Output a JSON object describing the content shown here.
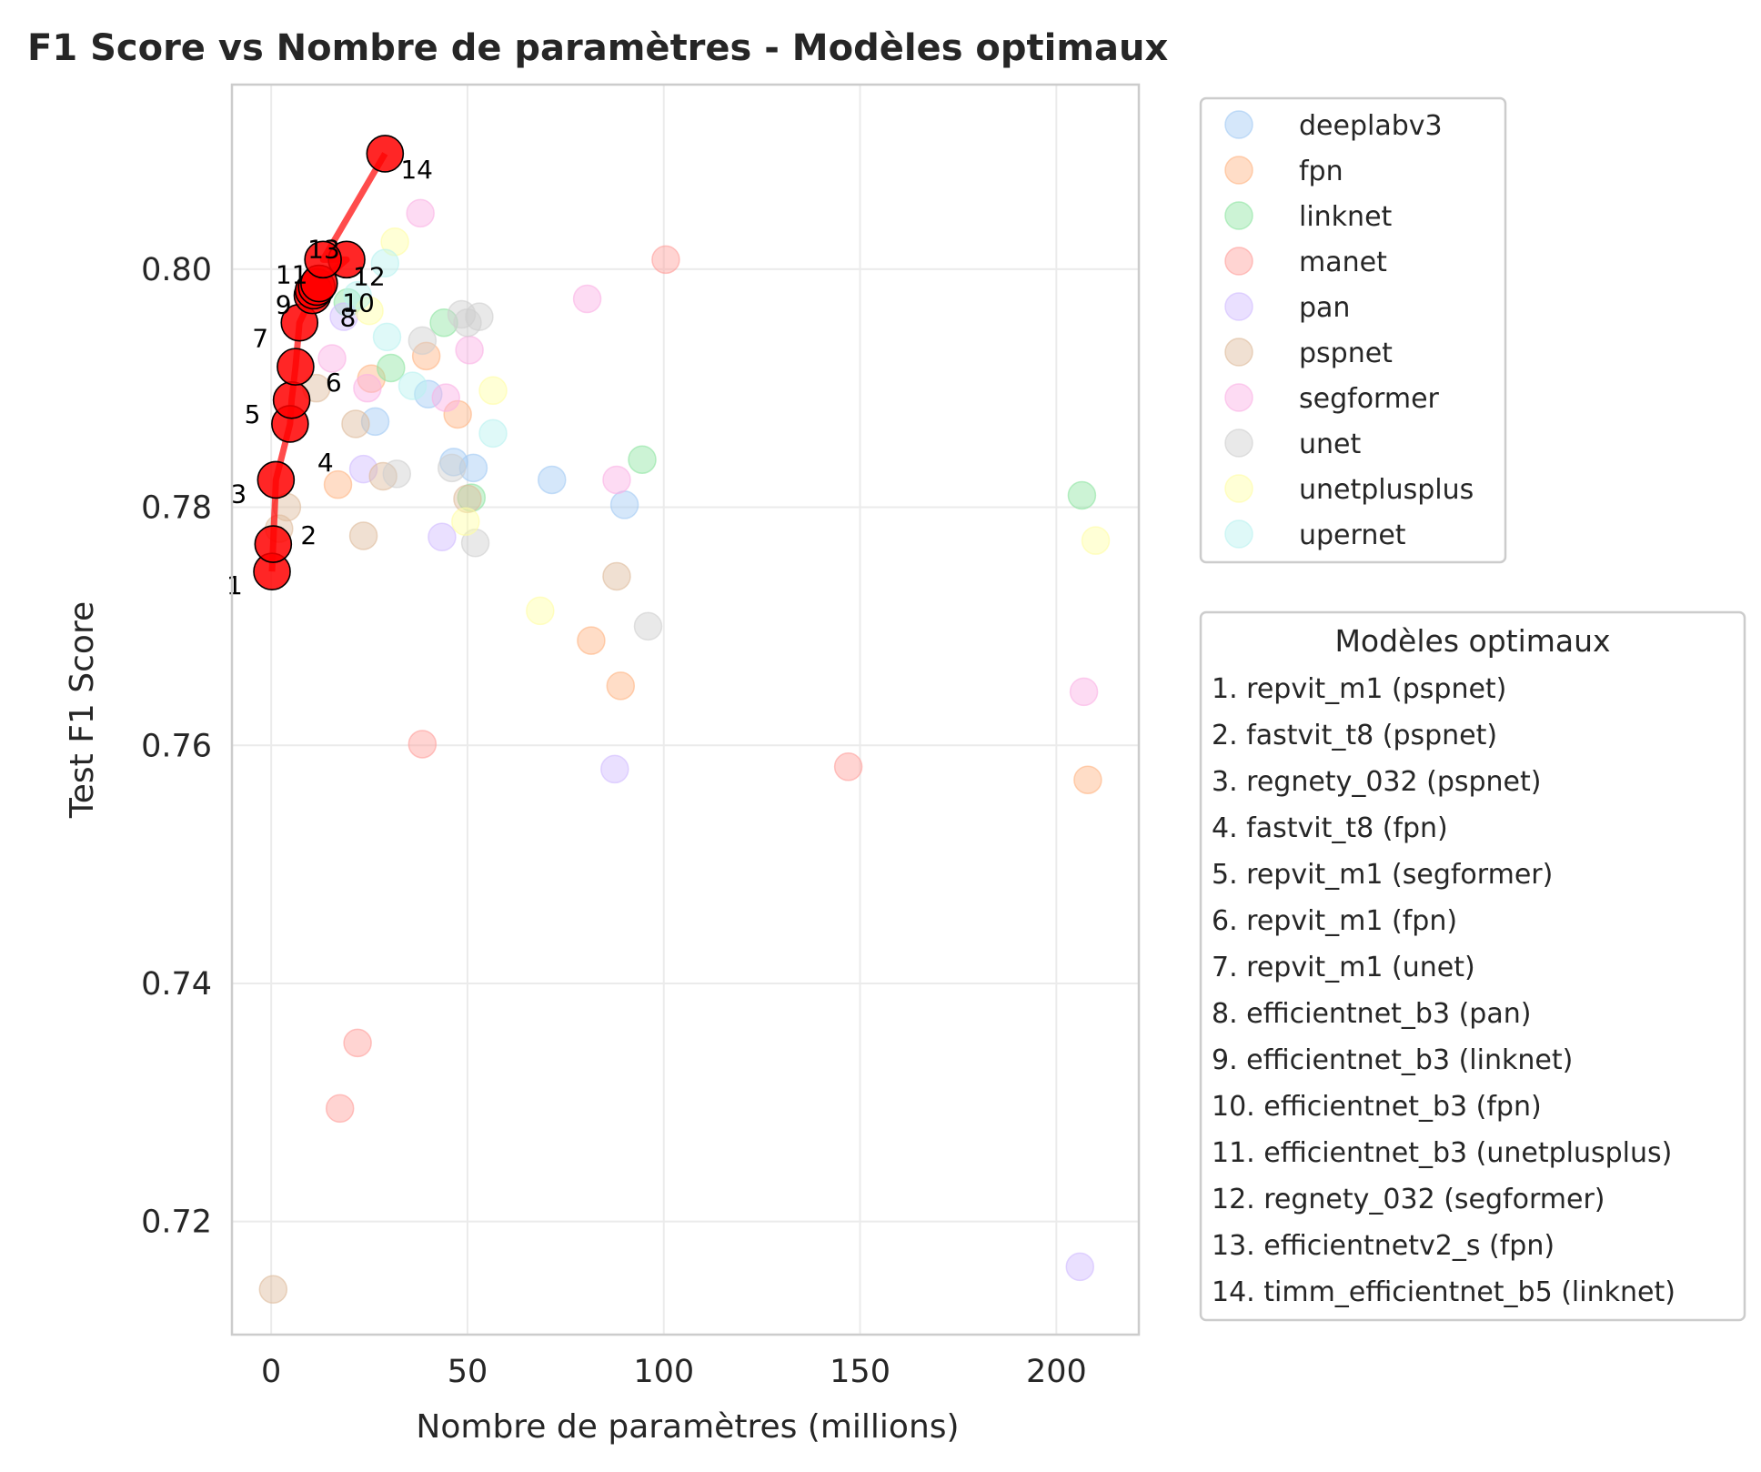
{
  "chart_data": {
    "type": "scatter",
    "title": "F1 Score vs Nombre de paramètres - Modèles optimaux",
    "xlabel": "Nombre de paramètres (millions)",
    "ylabel": "Test F1 Score",
    "xlim": [
      -10,
      221
    ],
    "ylim": [
      0.7105,
      0.8155
    ],
    "xticks": [
      0,
      50,
      100,
      150,
      200
    ],
    "yticks": [
      0.72,
      0.74,
      0.76,
      0.78,
      0.8
    ],
    "xtick_labels": [
      "0",
      "50",
      "100",
      "150",
      "200"
    ],
    "ytick_labels": [
      "0.72",
      "0.74",
      "0.76",
      "0.78",
      "0.80"
    ],
    "grid": true,
    "legend_placement": "outside-right-top",
    "series": [
      {
        "name": "deeplabv3",
        "color": "#a1c9f4",
        "points": [
          [
            26.5,
            0.7872
          ],
          [
            40,
            0.7895
          ],
          [
            46.5,
            0.7838
          ],
          [
            51.5,
            0.7833
          ],
          [
            71.5,
            0.7823
          ],
          [
            90,
            0.7802
          ]
        ]
      },
      {
        "name": "fpn",
        "color": "#ffb482",
        "points": [
          [
            17,
            0.7819
          ],
          [
            25.5,
            0.7908
          ],
          [
            39.5,
            0.7927
          ],
          [
            47.5,
            0.7878
          ],
          [
            81.5,
            0.7688
          ],
          [
            89,
            0.765
          ],
          [
            208,
            0.7571
          ]
        ]
      },
      {
        "name": "linknet",
        "color": "#8de5a1",
        "points": [
          [
            44,
            0.7955
          ],
          [
            30.5,
            0.7917
          ],
          [
            94.5,
            0.784
          ],
          [
            51,
            0.7808
          ],
          [
            206.5,
            0.781
          ],
          [
            19.5,
            0.7972
          ]
        ]
      },
      {
        "name": "manet",
        "color": "#ff9f9b",
        "points": [
          [
            100.5,
            0.8008
          ],
          [
            38.5,
            0.7601
          ],
          [
            147,
            0.7582
          ],
          [
            22,
            0.735
          ],
          [
            17.5,
            0.7295
          ]
        ]
      },
      {
        "name": "pan",
        "color": "#d0bbff",
        "points": [
          [
            23.5,
            0.7832
          ],
          [
            43.5,
            0.7775
          ],
          [
            87.5,
            0.758
          ],
          [
            206,
            0.7162
          ],
          [
            18.5,
            0.796
          ]
        ]
      },
      {
        "name": "pspnet",
        "color": "#debb9b",
        "points": [
          [
            11.5,
            0.79
          ],
          [
            21.5,
            0.787
          ],
          [
            23.5,
            0.7776
          ],
          [
            28.5,
            0.7826
          ],
          [
            4,
            0.78
          ],
          [
            2,
            0.7782
          ],
          [
            88,
            0.7742
          ],
          [
            0.5,
            0.7143
          ],
          [
            50,
            0.7807
          ]
        ]
      },
      {
        "name": "segformer",
        "color": "#fab0e4",
        "points": [
          [
            38,
            0.8047
          ],
          [
            80.5,
            0.7975
          ],
          [
            50.5,
            0.7932
          ],
          [
            15.5,
            0.7925
          ],
          [
            24.5,
            0.79
          ],
          [
            44.5,
            0.7892
          ],
          [
            88,
            0.7823
          ],
          [
            207,
            0.7645
          ]
        ]
      },
      {
        "name": "unet",
        "color": "#cfcfcf",
        "points": [
          [
            48.5,
            0.7962
          ],
          [
            53,
            0.796
          ],
          [
            50,
            0.7955
          ],
          [
            32,
            0.7828
          ],
          [
            46,
            0.7833
          ],
          [
            52,
            0.777
          ],
          [
            96,
            0.77
          ],
          [
            38.5,
            0.794
          ]
        ]
      },
      {
        "name": "unetplusplus",
        "color": "#fffea3",
        "points": [
          [
            31.5,
            0.8023
          ],
          [
            56.5,
            0.7898
          ],
          [
            49.5,
            0.7788
          ],
          [
            68.5,
            0.7713
          ],
          [
            210,
            0.7772
          ],
          [
            25,
            0.7965
          ]
        ]
      },
      {
        "name": "upernet",
        "color": "#b9f2f0",
        "points": [
          [
            29.5,
            0.7943
          ],
          [
            36,
            0.7902
          ],
          [
            56.5,
            0.7862
          ],
          [
            22,
            0.7978
          ],
          [
            29,
            0.8005
          ]
        ]
      }
    ],
    "optimal": {
      "legend_title": "Modèles optimaux",
      "color": "#ff0000",
      "points": [
        {
          "num": "1",
          "x": 0.2,
          "y": 0.7746,
          "label": "1. repvit_m1 (pspnet)"
        },
        {
          "num": "2",
          "x": 0.5,
          "y": 0.7769,
          "label": "2. fastvit_t8 (pspnet)"
        },
        {
          "num": "3",
          "x": 1.2,
          "y": 0.7823,
          "label": "3. regnety_032 (pspnet)"
        },
        {
          "num": "4",
          "x": 4.8,
          "y": 0.787,
          "label": "4. fastvit_t8 (fpn)"
        },
        {
          "num": "5",
          "x": 5.2,
          "y": 0.789,
          "label": "5. repvit_m1 (segformer)"
        },
        {
          "num": "6",
          "x": 6.2,
          "y": 0.7918,
          "label": "6. repvit_m1 (fpn)"
        },
        {
          "num": "7",
          "x": 7.2,
          "y": 0.7955,
          "label": "7. repvit_m1 (unet)"
        },
        {
          "num": "8",
          "x": 10.5,
          "y": 0.7978,
          "label": "8. efficientnet_b3 (pan)"
        },
        {
          "num": "9",
          "x": 10.8,
          "y": 0.7982,
          "label": "9. efficientnet_b3 (linknet)"
        },
        {
          "num": "10",
          "x": 11.6,
          "y": 0.7985,
          "label": "10. efficientnet_b3 (fpn)"
        },
        {
          "num": "11",
          "x": 12.2,
          "y": 0.7988,
          "label": "11. efficientnet_b3 (unetplusplus)"
        },
        {
          "num": "12",
          "x": 19.2,
          "y": 0.8008,
          "label": "12. regnety_032 (segformer)"
        },
        {
          "num": "13",
          "x": 13.2,
          "y": 0.8008,
          "label": "13. efficientnetv2_s (fpn)"
        },
        {
          "num": "14",
          "x": 29,
          "y": 0.8097,
          "label": "14. timm_efficientnet_b5 (linknet)"
        }
      ]
    }
  }
}
